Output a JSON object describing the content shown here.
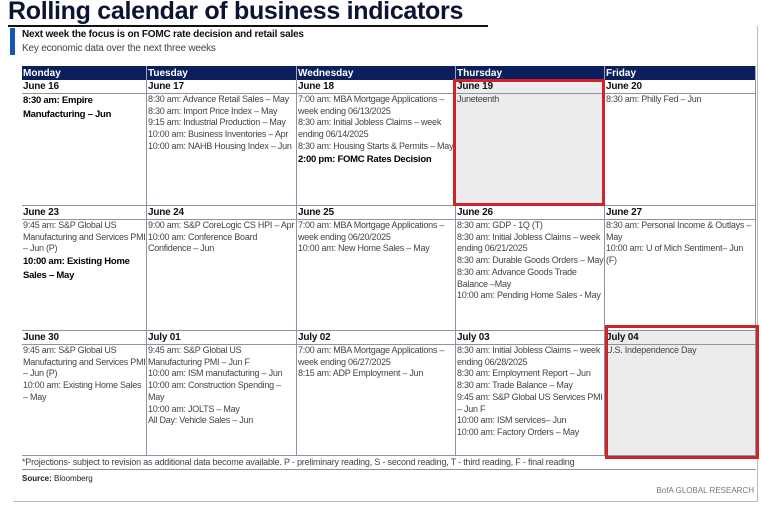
{
  "title": "Rolling calendar of business indicators",
  "subtitle": "Next week the focus is on FOMC rate decision and retail sales",
  "description": "Key economic data over the next three weeks",
  "days": [
    "Monday",
    "Tuesday",
    "Wednesday",
    "Thursday",
    "Friday"
  ],
  "weeks": [
    [
      {
        "date": "June 16",
        "items": [
          {
            "t": "8:30 am: Empire Manufacturing – Jun",
            "b": true
          }
        ]
      },
      {
        "date": "June 17",
        "items": [
          {
            "t": "8:30 am: Advance Retail Sales – May"
          },
          {
            "t": "8:30 am: Import Price Index – May"
          },
          {
            "t": "9:15 am: Industrial Production – May"
          },
          {
            "t": "10:00 am: Business Inventories – Apr"
          },
          {
            "t": "10:00 am: NAHB Housing Index – Jun"
          }
        ]
      },
      {
        "date": "June 18",
        "items": [
          {
            "t": "7:00 am: MBA Mortgage Applications – week ending 06/13/2025"
          },
          {
            "t": "8:30 am: Initial Jobless Claims – week ending 06/14/2025"
          },
          {
            "t": "8:30 am: Housing Starts & Permits – May"
          },
          {
            "t": "2:00 pm: FOMC Rates Decision",
            "b": true
          }
        ]
      },
      {
        "date": "June 19",
        "holiday": true,
        "items": [
          {
            "t": "Juneteenth"
          }
        ]
      },
      {
        "date": "June 20",
        "items": [
          {
            "t": "8:30 am: Philly Fed – Jun"
          }
        ]
      }
    ],
    [
      {
        "date": "June 23",
        "items": [
          {
            "t": "9:45 am: S&P Global US Manufacturing and Services PMI – Jun (P)"
          },
          {
            "t": "10:00 am: Existing Home Sales – May",
            "b": true
          }
        ]
      },
      {
        "date": "June 24",
        "items": [
          {
            "t": "9:00 am: S&P CoreLogic CS HPI – Apr"
          },
          {
            "t": "10:00 am: Conference Board Confidence – Jun"
          }
        ]
      },
      {
        "date": "June 25",
        "items": [
          {
            "t": "7:00 am: MBA Mortgage Applications – week ending 06/20/2025"
          },
          {
            "t": "10:00 am: New Home Sales – May"
          }
        ]
      },
      {
        "date": "June 26",
        "items": [
          {
            "t": "8:30 am: GDP - 1Q (T)"
          },
          {
            "t": "8:30 am: Initial Jobless Claims – week ending 06/21/2025"
          },
          {
            "t": "8:30 am: Durable Goods Orders – May"
          },
          {
            "t": "8:30 am: Advance Goods Trade Balance –May"
          },
          {
            "t": "10:00 am: Pending Home Sales - May"
          }
        ]
      },
      {
        "date": "June 27",
        "items": [
          {
            "t": "8:30 am: Personal Income & Outlays – May"
          },
          {
            "t": "10:00 am: U of Mich Sentiment– Jun (F)"
          }
        ]
      }
    ],
    [
      {
        "date": "June 30",
        "items": [
          {
            "t": "9:45 am: S&P Global US Manufacturing and Services PMI – Jun (P)"
          },
          {
            "t": "10:00 am: Existing Home Sales – May"
          }
        ]
      },
      {
        "date": "July 01",
        "items": [
          {
            "t": "9:45 am: S&P Global US Manufacturing PMI – Jun F"
          },
          {
            "t": "10:00 am: ISM manufacturing – Jun"
          },
          {
            "t": "10:00 am: Construction Spending – May"
          },
          {
            "t": "10:00 am: JOLTS – May"
          },
          {
            "t": "All Day: Vehicle Sales – Jun"
          }
        ]
      },
      {
        "date": "July 02",
        "items": [
          {
            "t": "7:00 am: MBA Mortgage Applications – week ending 06/27/2025"
          },
          {
            "t": "8:15 am: ADP Employment – Jun"
          }
        ]
      },
      {
        "date": "July 03",
        "items": [
          {
            "t": "8:30 am: Initial Jobless Claims – week ending 06/28/2025"
          },
          {
            "t": "8:30 am: Employment Report – Jun"
          },
          {
            "t": "8:30 am: Trade Balance – May"
          },
          {
            "t": "9:45 am: S&P Global US Services PMI – Jun F"
          },
          {
            "t": "10:00 am: ISM services– Jun"
          },
          {
            "t": "10:00 am: Factory Orders – May"
          }
        ]
      },
      {
        "date": "July 04",
        "holiday": true,
        "items": [
          {
            "t": "U.S. Independence Day"
          }
        ]
      }
    ]
  ],
  "footnote": "*Projections- subject to revision as additional data become available. P - preliminary reading, S - second reading, T - third reading, F - final reading",
  "source_label": "Source:",
  "source": "Bloomberg",
  "brand": "BofA GLOBAL RESEARCH",
  "colors": {
    "header": "#0b1f5c",
    "highlight": "#d1242a",
    "accent": "#1556b8",
    "holiday": "#ececec"
  }
}
